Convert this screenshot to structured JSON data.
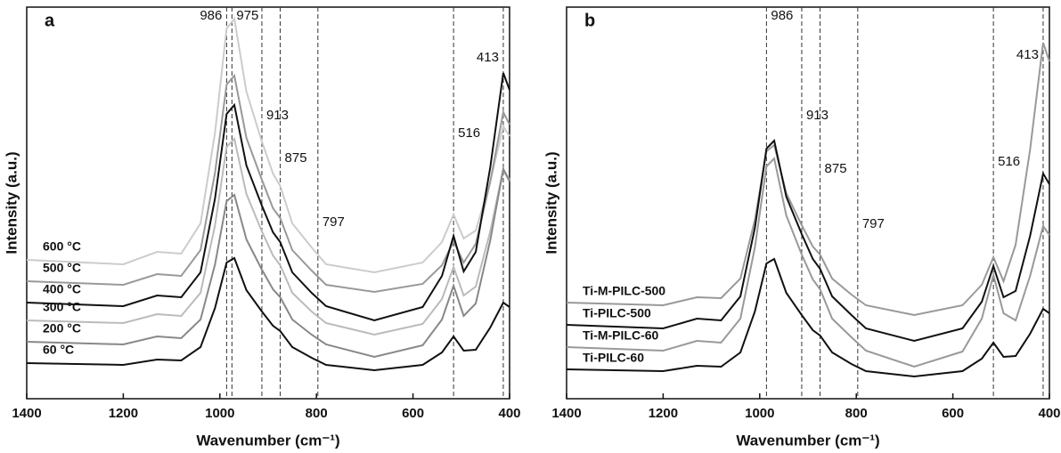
{
  "chart_data": [
    {
      "type": "line",
      "title": "a",
      "xlabel": "Wavenumber (cm⁻¹)",
      "ylabel": "Intensity (a.u.)",
      "xlim": [
        1400,
        400
      ],
      "xticks": [
        1400,
        1200,
        1000,
        800,
        600,
        400
      ],
      "ylim": [
        0,
        440
      ],
      "x": [
        1400,
        1200,
        1130,
        1080,
        1040,
        1010,
        986,
        970,
        945,
        913,
        890,
        875,
        850,
        810,
        780,
        680,
        580,
        540,
        516,
        495,
        470,
        440,
        413,
        400
      ],
      "peaks": [
        986,
        975,
        913,
        875,
        797,
        516,
        413
      ],
      "series": [
        {
          "name": "600 °C",
          "color": "#cccccc",
          "values": [
            156,
            151,
            165,
            163,
            197,
            299,
            416,
            427,
            345,
            289,
            253,
            239,
            197,
            170,
            151,
            142,
            153,
            176,
            207,
            180,
            189,
            244,
            306,
            295
          ]
        },
        {
          "name": "500 °C",
          "color": "#999999",
          "values": [
            132,
            128,
            140,
            138,
            167,
            254,
            353,
            363,
            293,
            246,
            214,
            203,
            167,
            144,
            128,
            120,
            129,
            150,
            177,
            153,
            174,
            244,
            322,
            308
          ]
        },
        {
          "name": "400 °C",
          "color": "#111111",
          "values": [
            108,
            104,
            116,
            114,
            142,
            225,
            320,
            330,
            262,
            217,
            187,
            176,
            142,
            119,
            104,
            88,
            103,
            138,
            183,
            143,
            165,
            260,
            366,
            347
          ]
        },
        {
          "name": "300 °C",
          "color": "#bbbbbb",
          "values": [
            88,
            85,
            95,
            93,
            119,
            195,
            283,
            292,
            230,
            188,
            161,
            150,
            119,
            98,
            85,
            72,
            84,
            112,
            148,
            116,
            126,
            188,
            258,
            246
          ]
        },
        {
          "name": "200 °C",
          "color": "#888888",
          "values": [
            64,
            61,
            70,
            68,
            89,
            151,
            222,
            229,
            179,
            145,
            123,
            114,
            89,
            72,
            61,
            47,
            60,
            89,
            127,
            93,
            107,
            178,
            258,
            244
          ]
        },
        {
          "name": "60 °C",
          "color": "#111111",
          "values": [
            40,
            38,
            44,
            43,
            58,
            102,
            153,
            158,
            122,
            98,
            82,
            76,
            58,
            46,
            38,
            32,
            38,
            52,
            70,
            54,
            55,
            80,
            108,
            103
          ]
        }
      ]
    },
    {
      "type": "line",
      "title": "b",
      "xlabel": "Wavenumber (cm⁻¹)",
      "ylabel": "Intensity (a.u.)",
      "xlim": [
        1400,
        400
      ],
      "xticks": [
        1400,
        1200,
        1000,
        800,
        600,
        400
      ],
      "ylim": [
        0,
        440
      ],
      "x": [
        1400,
        1200,
        1130,
        1080,
        1040,
        1010,
        986,
        970,
        945,
        913,
        890,
        875,
        850,
        810,
        780,
        680,
        580,
        540,
        516,
        495,
        470,
        440,
        413,
        400
      ],
      "peaks": [
        986,
        913,
        875,
        797,
        516,
        413
      ],
      "series": [
        {
          "name": "Ti-M-PILC-500",
          "color": "#999999",
          "values": [
            108,
            105,
            114,
            113,
            135,
            201,
            278,
            285,
            231,
            195,
            171,
            162,
            135,
            117,
            105,
            94,
            105,
            128,
            159,
            132,
            173,
            280,
            400,
            379
          ]
        },
        {
          "name": "Ti-PILC-500",
          "color": "#111111",
          "values": [
            83,
            79,
            90,
            88,
            115,
            192,
            281,
            290,
            227,
            185,
            157,
            146,
            115,
            94,
            79,
            65,
            79,
            109,
            149,
            114,
            121,
            183,
            253,
            241
          ]
        },
        {
          "name": "Ti-M-PILC-60",
          "color": "#999999",
          "values": [
            58,
            54,
            65,
            63,
            90,
            170,
            261,
            270,
            206,
            162,
            134,
            123,
            90,
            69,
            54,
            36,
            53,
            90,
            139,
            96,
            88,
            138,
            194,
            184
          ]
        },
        {
          "name": "Ti-PILC-60",
          "color": "#111111",
          "values": [
            33,
            31,
            37,
            36,
            52,
            98,
            152,
            157,
            119,
            94,
            77,
            71,
            52,
            39,
            31,
            25,
            31,
            45,
            63,
            47,
            48,
            73,
            101,
            96
          ]
        }
      ]
    }
  ]
}
